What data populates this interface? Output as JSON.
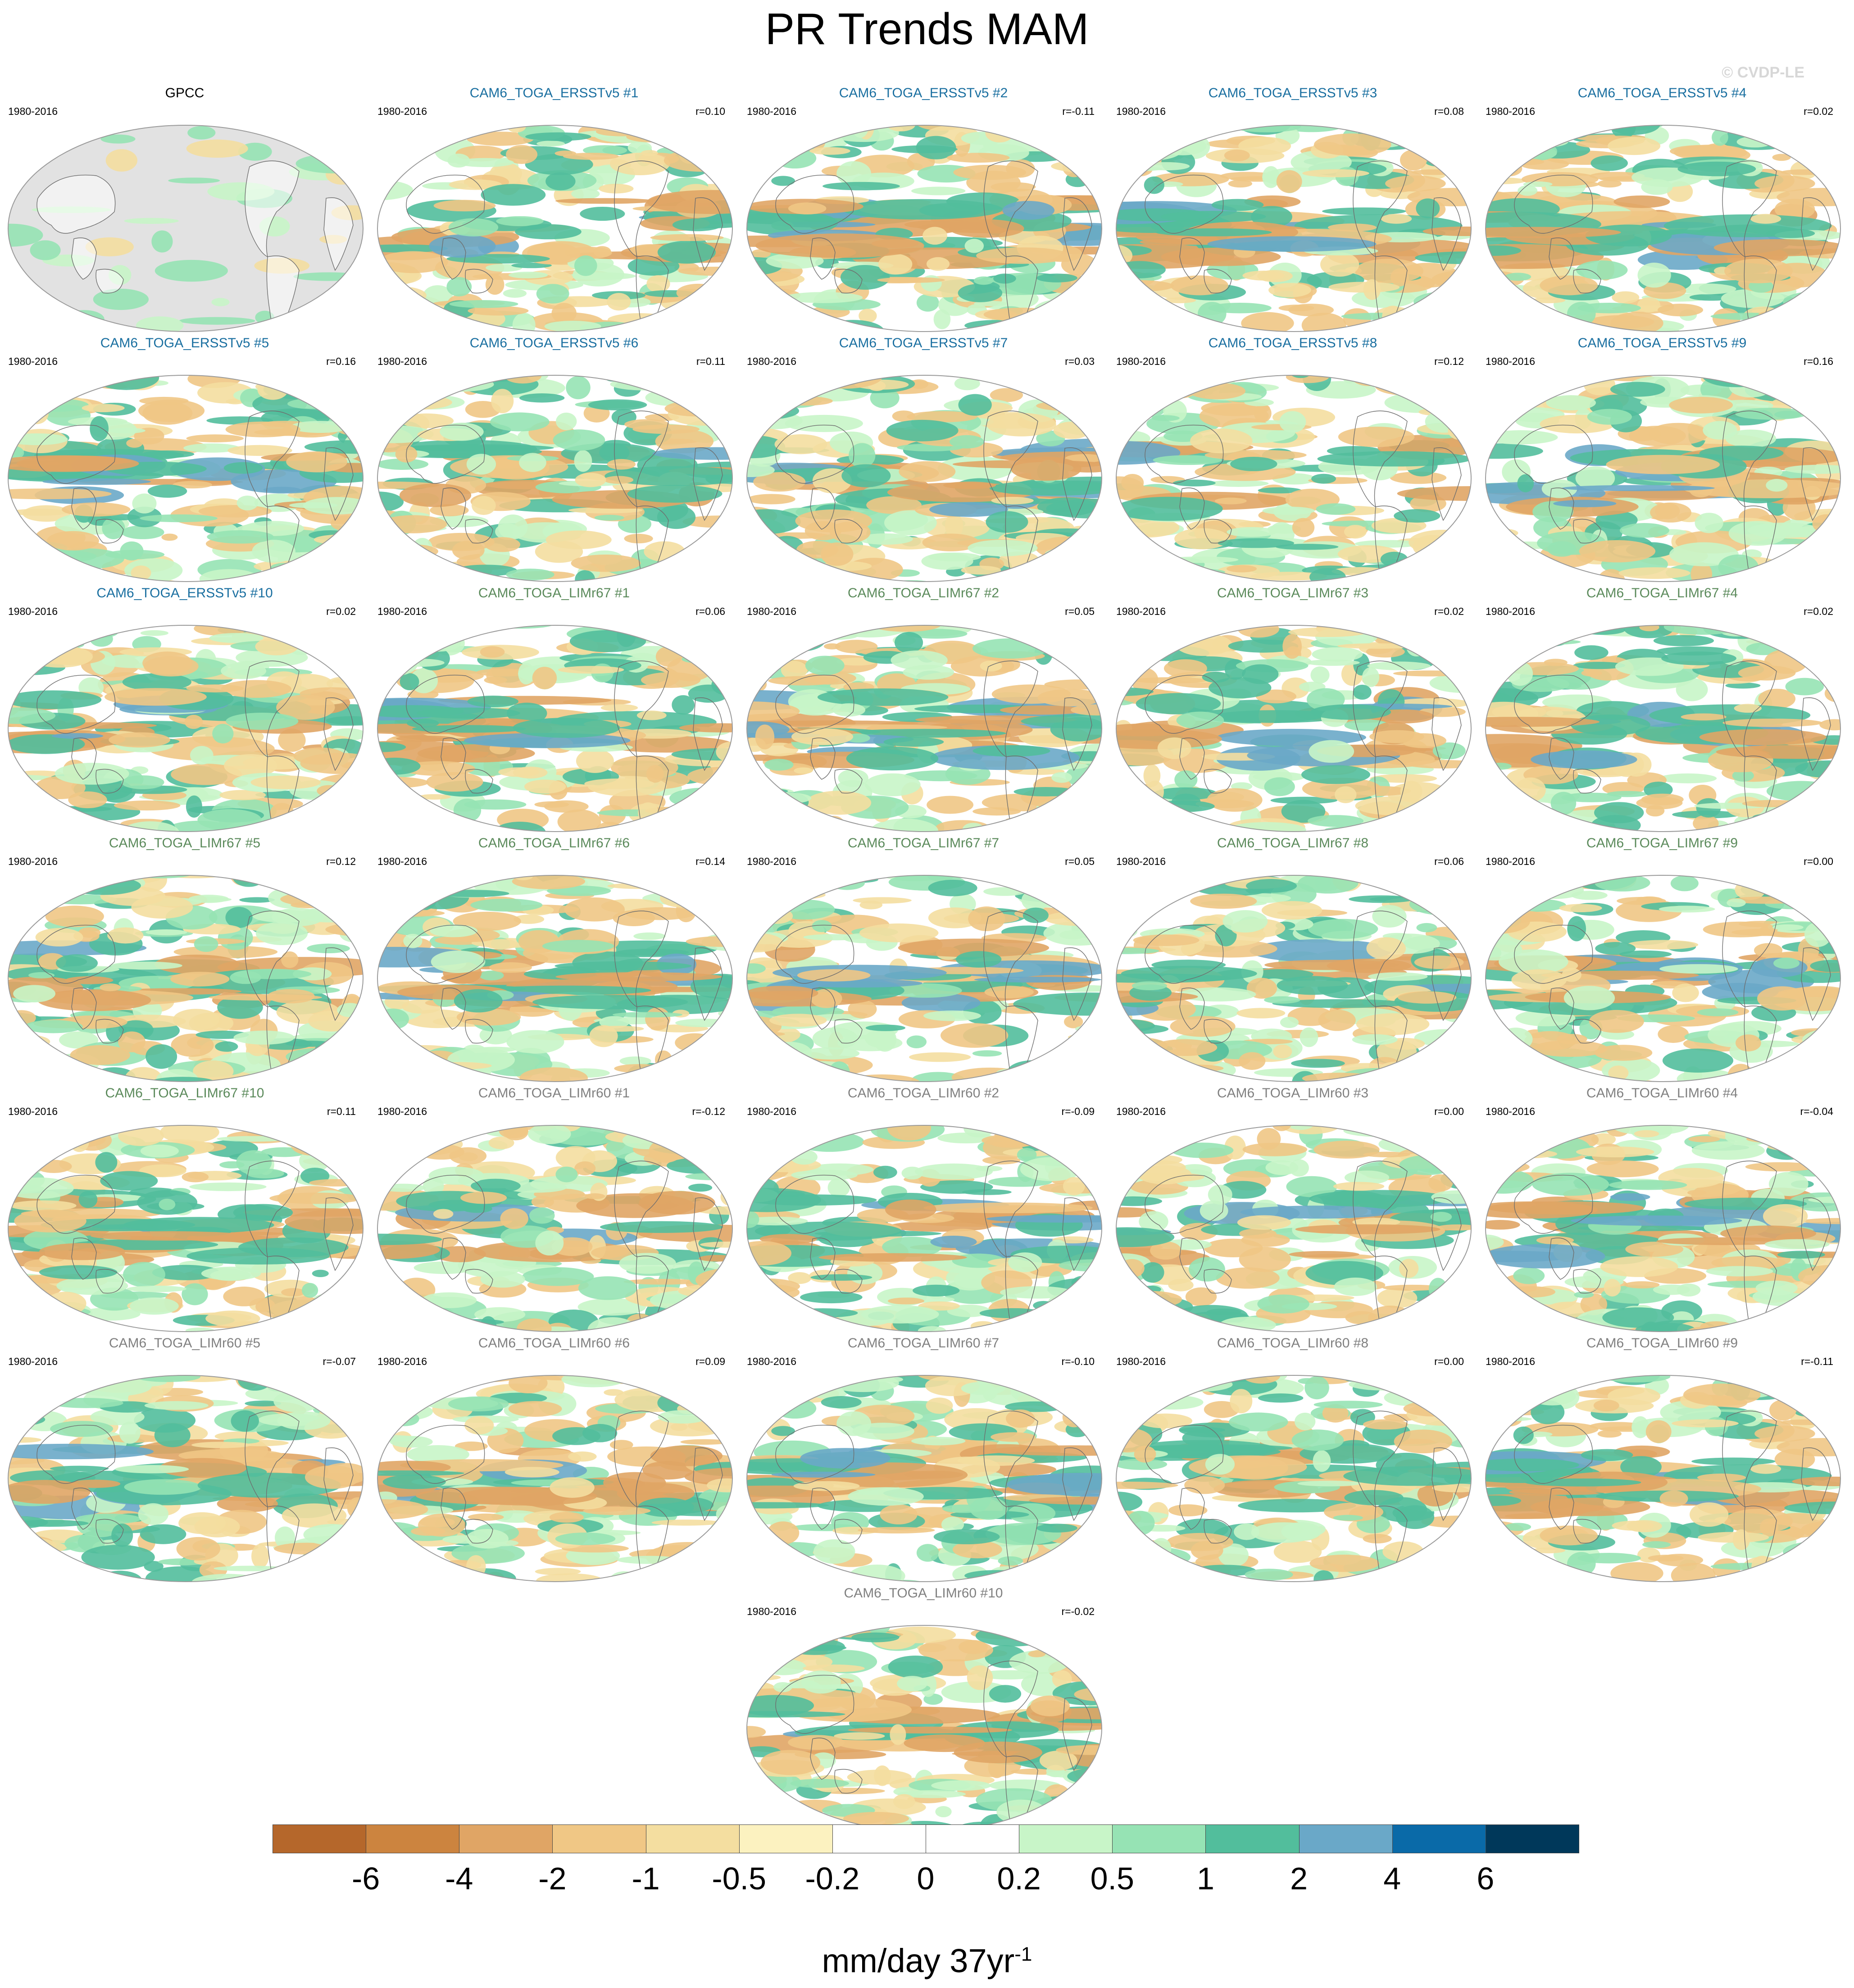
{
  "page": {
    "title": "PR Trends MAM",
    "watermark": "© CVDP-LE"
  },
  "panels": [
    {
      "title": "GPCC",
      "period": "1980-2016",
      "r": "",
      "color": "#000000",
      "kind": "obs"
    },
    {
      "title": "CAM6_TOGA_ERSSTv5 #1",
      "period": "1980-2016",
      "r": "r=0.10",
      "color": "#1a6fa0",
      "kind": "model"
    },
    {
      "title": "CAM6_TOGA_ERSSTv5 #2",
      "period": "1980-2016",
      "r": "r=-0.11",
      "color": "#1a6fa0",
      "kind": "model"
    },
    {
      "title": "CAM6_TOGA_ERSSTv5 #3",
      "period": "1980-2016",
      "r": "r=0.08",
      "color": "#1a6fa0",
      "kind": "model"
    },
    {
      "title": "CAM6_TOGA_ERSSTv5 #4",
      "period": "1980-2016",
      "r": "r=0.02",
      "color": "#1a6fa0",
      "kind": "model"
    },
    {
      "title": "CAM6_TOGA_ERSSTv5 #5",
      "period": "1980-2016",
      "r": "r=0.16",
      "color": "#1a6fa0",
      "kind": "model"
    },
    {
      "title": "CAM6_TOGA_ERSSTv5 #6",
      "period": "1980-2016",
      "r": "r=0.11",
      "color": "#1a6fa0",
      "kind": "model"
    },
    {
      "title": "CAM6_TOGA_ERSSTv5 #7",
      "period": "1980-2016",
      "r": "r=0.03",
      "color": "#1a6fa0",
      "kind": "model"
    },
    {
      "title": "CAM6_TOGA_ERSSTv5 #8",
      "period": "1980-2016",
      "r": "r=0.12",
      "color": "#1a6fa0",
      "kind": "model"
    },
    {
      "title": "CAM6_TOGA_ERSSTv5 #9",
      "period": "1980-2016",
      "r": "r=0.16",
      "color": "#1a6fa0",
      "kind": "model"
    },
    {
      "title": "CAM6_TOGA_ERSSTv5 #10",
      "period": "1980-2016",
      "r": "r=0.02",
      "color": "#1a6fa0",
      "kind": "model"
    },
    {
      "title": "CAM6_TOGA_LIMr67 #1",
      "period": "1980-2016",
      "r": "r=0.06",
      "color": "#5b8a5b",
      "kind": "model"
    },
    {
      "title": "CAM6_TOGA_LIMr67 #2",
      "period": "1980-2016",
      "r": "r=0.05",
      "color": "#5b8a5b",
      "kind": "model"
    },
    {
      "title": "CAM6_TOGA_LIMr67 #3",
      "period": "1980-2016",
      "r": "r=0.02",
      "color": "#5b8a5b",
      "kind": "model"
    },
    {
      "title": "CAM6_TOGA_LIMr67 #4",
      "period": "1980-2016",
      "r": "r=0.02",
      "color": "#5b8a5b",
      "kind": "model"
    },
    {
      "title": "CAM6_TOGA_LIMr67 #5",
      "period": "1980-2016",
      "r": "r=0.12",
      "color": "#5b8a5b",
      "kind": "model"
    },
    {
      "title": "CAM6_TOGA_LIMr67 #6",
      "period": "1980-2016",
      "r": "r=0.14",
      "color": "#5b8a5b",
      "kind": "model"
    },
    {
      "title": "CAM6_TOGA_LIMr67 #7",
      "period": "1980-2016",
      "r": "r=0.05",
      "color": "#5b8a5b",
      "kind": "model"
    },
    {
      "title": "CAM6_TOGA_LIMr67 #8",
      "period": "1980-2016",
      "r": "r=0.06",
      "color": "#5b8a5b",
      "kind": "model"
    },
    {
      "title": "CAM6_TOGA_LIMr67 #9",
      "period": "1980-2016",
      "r": "r=0.00",
      "color": "#5b8a5b",
      "kind": "model"
    },
    {
      "title": "CAM6_TOGA_LIMr67 #10",
      "period": "1980-2016",
      "r": "r=0.11",
      "color": "#5b8a5b",
      "kind": "model"
    },
    {
      "title": "CAM6_TOGA_LIMr60 #1",
      "period": "1980-2016",
      "r": "r=-0.12",
      "color": "#808080",
      "kind": "model"
    },
    {
      "title": "CAM6_TOGA_LIMr60 #2",
      "period": "1980-2016",
      "r": "r=-0.09",
      "color": "#808080",
      "kind": "model"
    },
    {
      "title": "CAM6_TOGA_LIMr60 #3",
      "period": "1980-2016",
      "r": "r=0.00",
      "color": "#808080",
      "kind": "model"
    },
    {
      "title": "CAM6_TOGA_LIMr60 #4",
      "period": "1980-2016",
      "r": "r=-0.04",
      "color": "#808080",
      "kind": "model"
    },
    {
      "title": "CAM6_TOGA_LIMr60 #5",
      "period": "1980-2016",
      "r": "r=-0.07",
      "color": "#808080",
      "kind": "model"
    },
    {
      "title": "CAM6_TOGA_LIMr60 #6",
      "period": "1980-2016",
      "r": "r=0.09",
      "color": "#808080",
      "kind": "model"
    },
    {
      "title": "CAM6_TOGA_LIMr60 #7",
      "period": "1980-2016",
      "r": "r=-0.10",
      "color": "#808080",
      "kind": "model"
    },
    {
      "title": "CAM6_TOGA_LIMr60 #8",
      "period": "1980-2016",
      "r": "r=0.00",
      "color": "#808080",
      "kind": "model"
    },
    {
      "title": "CAM6_TOGA_LIMr60 #9",
      "period": "1980-2016",
      "r": "r=-0.11",
      "color": "#808080",
      "kind": "model"
    },
    {
      "title": "CAM6_TOGA_LIMr60 #10",
      "period": "1980-2016",
      "r": "r=-0.02",
      "color": "#808080",
      "kind": "model"
    }
  ],
  "colorbar": {
    "colors": [
      "#b5672b",
      "#cc843f",
      "#e0a565",
      "#f0c785",
      "#f4dea0",
      "#fcf2c0",
      "#ffffff",
      "#ffffff",
      "#c8f5c8",
      "#96e3b4",
      "#52be9c",
      "#6aa8c8",
      "#0a6aa8",
      "#00385a"
    ],
    "ticks": [
      "-6",
      "-4",
      "-2",
      "-1",
      "-0.5",
      "-0.2",
      "0",
      "0.2",
      "0.5",
      "1",
      "2",
      "4",
      "6"
    ],
    "units": "mm/day 37yr",
    "units_exponent": "-1"
  }
}
